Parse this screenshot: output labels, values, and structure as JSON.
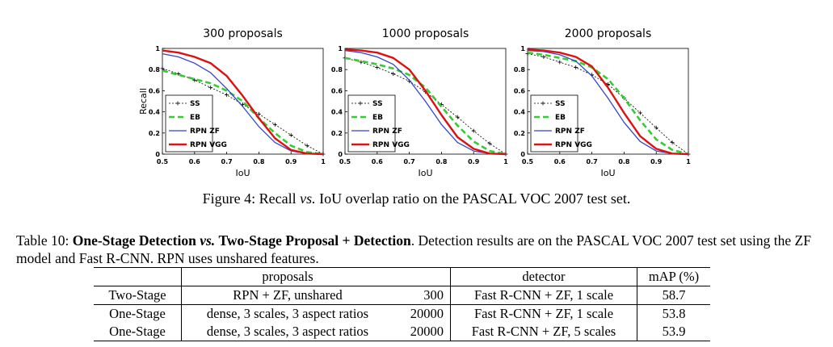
{
  "figure": {
    "caption_prefix": "Figure 4: Recall ",
    "caption_vs": "vs.",
    "caption_suffix": " IoU overlap ratio on the PASCAL VOC 2007 test set."
  },
  "chart_data": [
    {
      "type": "line",
      "title": "300 proposals",
      "xlabel": "IoU",
      "ylabel": "Recall",
      "xlim": [
        0.5,
        1
      ],
      "ylim": [
        0,
        1
      ],
      "x_ticks": [
        "0.5",
        "0.6",
        "0.7",
        "0.8",
        "0.9",
        "1"
      ],
      "y_ticks": [
        "0",
        "0.2",
        "0.4",
        "0.6",
        "0.8",
        "1"
      ],
      "legend": "lower-left",
      "grid": false,
      "x": [
        0.5,
        0.55,
        0.6,
        0.65,
        0.7,
        0.75,
        0.8,
        0.85,
        0.9,
        0.95,
        1.0
      ],
      "series": [
        {
          "name": "SS",
          "color": "#000000",
          "values": [
            0.81,
            0.76,
            0.7,
            0.63,
            0.56,
            0.47,
            0.38,
            0.28,
            0.18,
            0.08,
            0.0
          ]
        },
        {
          "name": "EB",
          "color": "#33cc33",
          "values": [
            0.79,
            0.75,
            0.71,
            0.67,
            0.6,
            0.5,
            0.34,
            0.2,
            0.08,
            0.02,
            0.0
          ]
        },
        {
          "name": "RPN ZF",
          "color": "#3344cc",
          "values": [
            0.95,
            0.92,
            0.86,
            0.77,
            0.62,
            0.45,
            0.26,
            0.11,
            0.03,
            0.005,
            0.0
          ]
        },
        {
          "name": "RPN VGG",
          "color": "#dd1111",
          "values": [
            0.98,
            0.96,
            0.92,
            0.86,
            0.74,
            0.55,
            0.34,
            0.15,
            0.04,
            0.005,
            0.0
          ]
        }
      ]
    },
    {
      "type": "line",
      "title": "1000 proposals",
      "xlabel": "IoU",
      "ylabel": "",
      "xlim": [
        0.5,
        1
      ],
      "ylim": [
        0,
        1
      ],
      "x_ticks": [
        "0.5",
        "0.6",
        "0.7",
        "0.8",
        "0.9",
        "1"
      ],
      "y_ticks": [
        "0",
        "0.2",
        "0.4",
        "0.6",
        "0.8",
        "1"
      ],
      "legend": "lower-left",
      "grid": false,
      "x": [
        0.5,
        0.55,
        0.6,
        0.65,
        0.7,
        0.75,
        0.8,
        0.85,
        0.9,
        0.95,
        1.0
      ],
      "series": [
        {
          "name": "SS",
          "color": "#000000",
          "values": [
            0.91,
            0.87,
            0.82,
            0.76,
            0.69,
            0.59,
            0.47,
            0.35,
            0.22,
            0.1,
            0.0
          ]
        },
        {
          "name": "EB",
          "color": "#33cc33",
          "values": [
            0.91,
            0.88,
            0.85,
            0.81,
            0.75,
            0.63,
            0.45,
            0.27,
            0.12,
            0.03,
            0.0
          ]
        },
        {
          "name": "RPN ZF",
          "color": "#3344cc",
          "values": [
            0.98,
            0.96,
            0.92,
            0.85,
            0.7,
            0.5,
            0.28,
            0.11,
            0.03,
            0.005,
            0.0
          ]
        },
        {
          "name": "RPN VGG",
          "color": "#dd1111",
          "values": [
            0.99,
            0.98,
            0.96,
            0.91,
            0.8,
            0.6,
            0.37,
            0.16,
            0.05,
            0.005,
            0.0
          ]
        }
      ]
    },
    {
      "type": "line",
      "title": "2000 proposals",
      "xlabel": "IoU",
      "ylabel": "",
      "xlim": [
        0.5,
        1
      ],
      "ylim": [
        0,
        1
      ],
      "x_ticks": [
        "0.5",
        "0.6",
        "0.7",
        "0.8",
        "0.9",
        "1"
      ],
      "y_ticks": [
        "0",
        "0.2",
        "0.4",
        "0.6",
        "0.8",
        "1"
      ],
      "legend": "lower-left",
      "grid": false,
      "x": [
        0.5,
        0.55,
        0.6,
        0.65,
        0.7,
        0.75,
        0.8,
        0.85,
        0.9,
        0.95,
        1.0
      ],
      "series": [
        {
          "name": "SS",
          "color": "#000000",
          "values": [
            0.95,
            0.92,
            0.87,
            0.82,
            0.75,
            0.66,
            0.53,
            0.39,
            0.25,
            0.11,
            0.0
          ]
        },
        {
          "name": "EB",
          "color": "#33cc33",
          "values": [
            0.96,
            0.94,
            0.91,
            0.88,
            0.82,
            0.71,
            0.53,
            0.32,
            0.14,
            0.04,
            0.0
          ]
        },
        {
          "name": "RPN ZF",
          "color": "#3344cc",
          "values": [
            0.98,
            0.97,
            0.94,
            0.88,
            0.74,
            0.53,
            0.3,
            0.12,
            0.03,
            0.005,
            0.0
          ]
        },
        {
          "name": "RPN VGG",
          "color": "#dd1111",
          "values": [
            0.99,
            0.98,
            0.96,
            0.92,
            0.83,
            0.63,
            0.39,
            0.17,
            0.05,
            0.005,
            0.0
          ]
        }
      ]
    }
  ],
  "table": {
    "caption_label": "Table 10:",
    "caption_bold_1": "One-Stage Detection",
    "caption_vs": "vs.",
    "caption_bold_2": "Two-Stage Proposal + Detection",
    "caption_rest": ". Detection results are on the PASCAL VOC 2007 test set using the ZF model and Fast R-CNN. RPN uses unshared features.",
    "headers": {
      "proposals": "proposals",
      "detector": "detector",
      "map": "mAP (%)"
    },
    "rows": [
      {
        "method": "Two-Stage",
        "proposals": "RPN + ZF, unshared",
        "num": "300",
        "detector": "Fast R-CNN + ZF, 1 scale",
        "map": "58.7"
      },
      {
        "method": "One-Stage",
        "proposals": "dense, 3 scales, 3 aspect ratios",
        "num": "20000",
        "detector": "Fast R-CNN + ZF, 1 scale",
        "map": "53.8"
      },
      {
        "method": "One-Stage",
        "proposals": "dense, 3 scales, 3 aspect ratios",
        "num": "20000",
        "detector": "Fast R-CNN + ZF, 5 scales",
        "map": "53.9"
      }
    ]
  }
}
